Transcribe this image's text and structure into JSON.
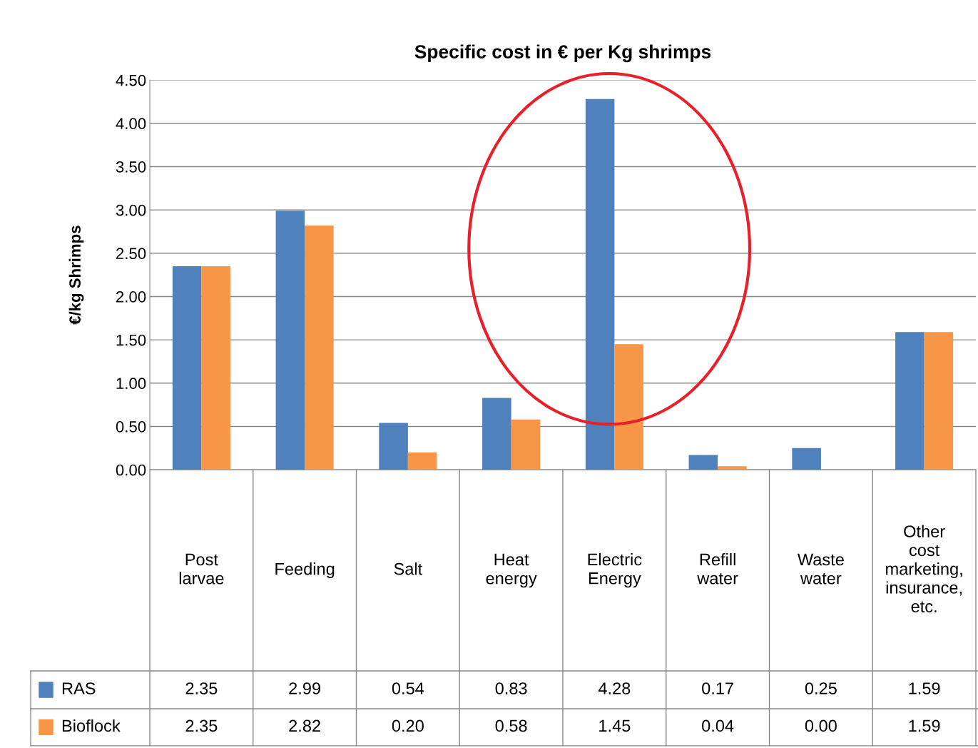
{
  "chart_data": {
    "type": "bar",
    "title": "Specific cost in € per Kg shrimps",
    "ylabel": "€/kg Shrimps",
    "categories": [
      "Post larvae",
      "Feeding",
      "Salt",
      "Heat energy",
      "Electric Energy",
      "Refill water",
      "Waste water",
      "Other cost marketing, insurance, etc."
    ],
    "series": [
      {
        "name": "RAS",
        "color": "#4f81bd",
        "values": [
          2.35,
          2.99,
          0.54,
          0.83,
          4.28,
          0.17,
          0.25,
          1.59
        ],
        "value_labels": [
          "2.35",
          "2.99",
          "0.54",
          "0.83",
          "4.28",
          "0.17",
          "0.25",
          "1.59"
        ]
      },
      {
        "name": "Bioflock",
        "color": "#f79646",
        "values": [
          2.35,
          2.82,
          0.2,
          0.58,
          1.45,
          0.04,
          0.0,
          1.59
        ],
        "value_labels": [
          "2.35",
          "2.82",
          "0.20",
          "0.58",
          "1.45",
          "0.04",
          "0.00",
          "1.59"
        ]
      }
    ],
    "ylim": [
      0,
      4.5
    ],
    "yticks": [
      {
        "value": 0,
        "label": "0.00"
      },
      {
        "value": 0.5,
        "label": "0.50"
      },
      {
        "value": 1,
        "label": "1.00"
      },
      {
        "value": 1.5,
        "label": "1.50"
      },
      {
        "value": 2,
        "label": "2.00"
      },
      {
        "value": 2.5,
        "label": "2.50"
      },
      {
        "value": 3,
        "label": "3.00"
      },
      {
        "value": 3.5,
        "label": "3.50"
      },
      {
        "value": 4,
        "label": "4.00"
      },
      {
        "value": 4.5,
        "label": "4.50"
      }
    ],
    "grid": "y",
    "legend": "bottom"
  }
}
